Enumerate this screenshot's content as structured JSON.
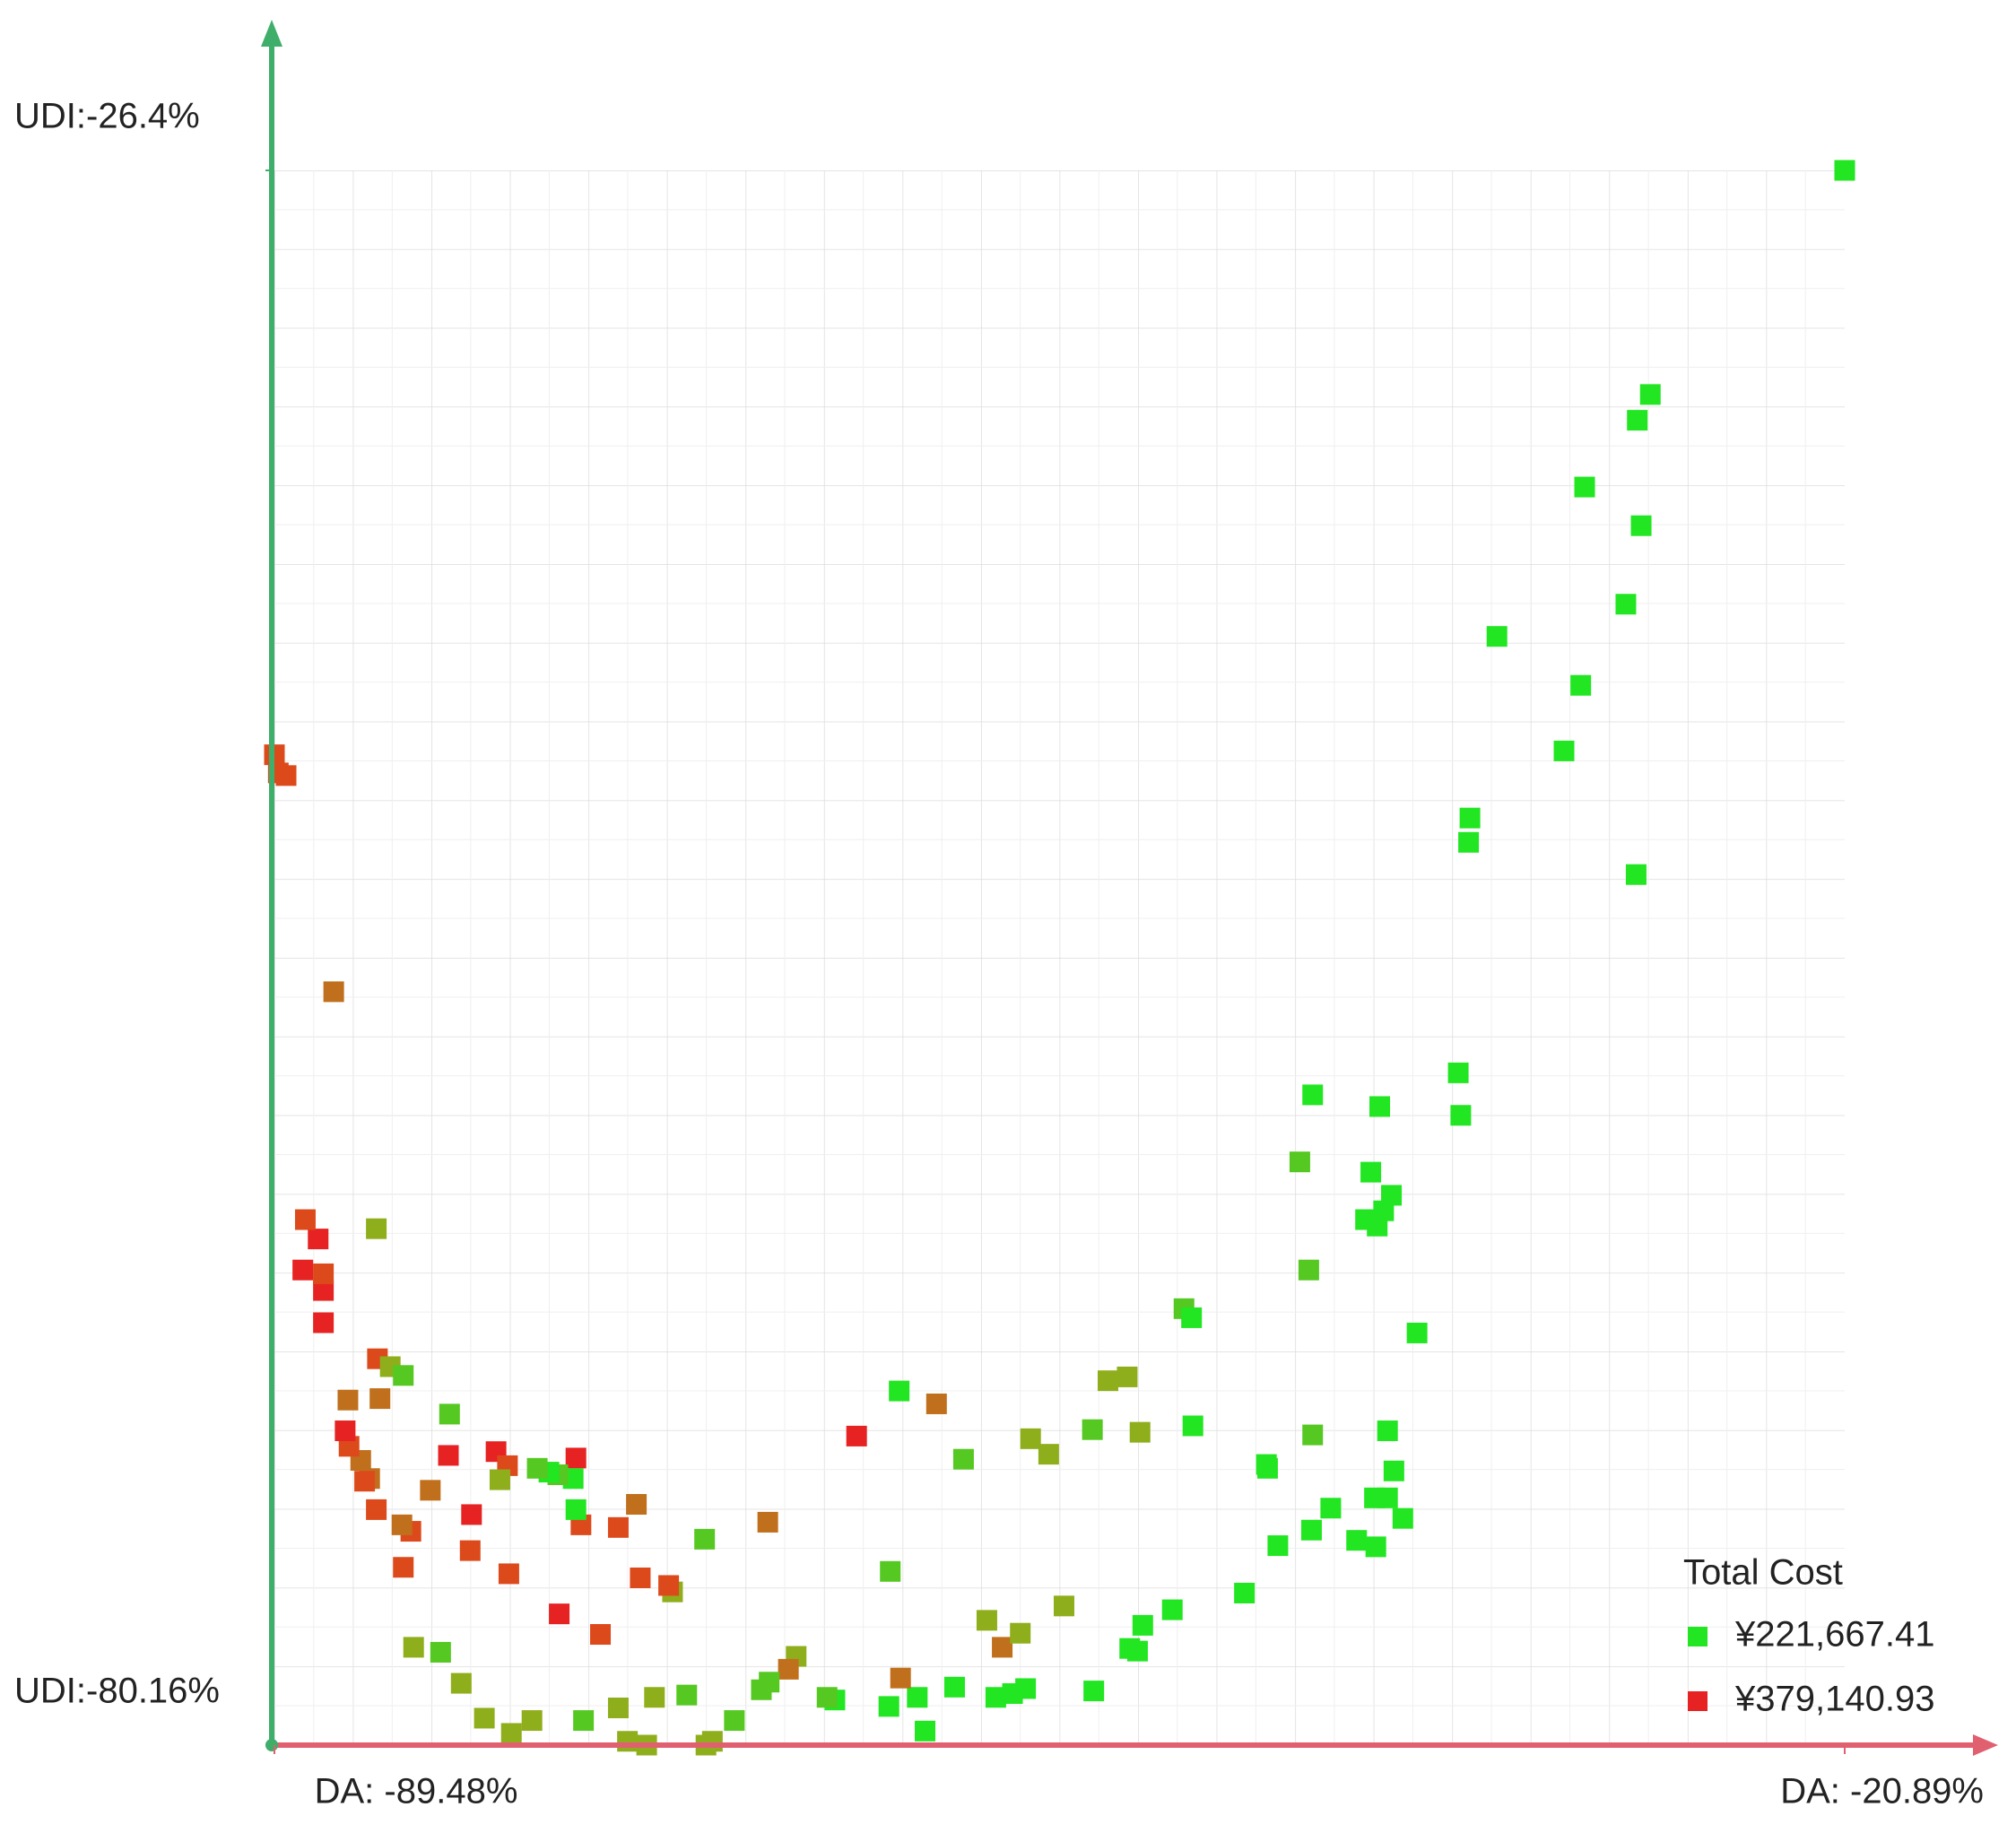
{
  "chart_data": {
    "type": "scatter",
    "xlim": [
      -89.48,
      -20.89
    ],
    "ylim": [
      -80.16,
      -26.4
    ],
    "xticks": [
      {
        "value": -89.48,
        "label": "DA: -89.48%"
      },
      {
        "value": -20.89,
        "label": "DA: -20.89%"
      }
    ],
    "yticks": [
      {
        "value": -80.16,
        "label": "UDI:-80.16%"
      },
      {
        "value": -26.4,
        "label": "UDI:-26.4%"
      }
    ],
    "grid": true,
    "legend": {
      "title": "Total Cost",
      "position": "lower-right",
      "items": [
        {
          "label": "¥221,667.41",
          "color": "#22e622"
        },
        {
          "label": "¥379,140.93",
          "color": "#e62222"
        }
      ]
    },
    "x": [
      -20.89,
      -29.38,
      -29.95,
      -32.25,
      -29.78,
      -30.45,
      -36.08,
      -32.42,
      -33.15,
      -37.26,
      -37.32,
      -30.0,
      -37.77,
      -37.66,
      -44.13,
      -41.2,
      -44.69,
      -41.59,
      -40.69,
      -41.03,
      -41.82,
      -41.31,
      -44.3,
      -39.57,
      -49.75,
      -49.42,
      -49.36,
      -40.86,
      -44.13,
      -46.15,
      -46.1,
      -40.58,
      -41.43,
      -40.86,
      -43.34,
      -40.19,
      -44.18,
      -42.21,
      -41.37,
      -45.65,
      -47.11,
      -50.26,
      -51.55,
      -52.12,
      -51.78,
      -53.07,
      -52.23,
      -53.75,
      -51.67,
      -56.45,
      -55.66,
      -54.99,
      -58.36,
      -57.69,
      -56.9,
      -53.69,
      -56.67,
      -57.24,
      -57.97,
      -59.77,
      -61.4,
      -61.06,
      -62.64,
      -62.13,
      -62.19,
      -60.56,
      -59.38,
      -64.05,
      -62.58,
      -65.0,
      -65.34,
      -66.69,
      -67.03,
      -67.87,
      -68.21,
      -69.39,
      -67.93,
      -70.69,
      -70.35,
      -70.63,
      -71.47,
      -72.88,
      -73.22,
      -74.06,
      -74.46,
      -75.98,
      -78.23,
      -79.13,
      -80.31,
      -81.32,
      -82.22,
      -83.4,
      -72.09,
      -72.26,
      -73.5,
      -75.24,
      -77.04,
      -73.67,
      -74.46,
      -76.09,
      -76.31,
      -76.31,
      -76.43,
      -77.1,
      -77.49,
      -78.0,
      -79.24,
      -80.87,
      -80.93,
      -79.8,
      -79.3,
      -79.63,
      -81.88,
      -81.83,
      -82.67,
      -83.52,
      -83.91,
      -83.85,
      -85.03,
      -85.32,
      -85.54,
      -85.71,
      -86.22,
      -86.39,
      -86.27,
      -84.87,
      -84.98,
      -84.42,
      -83.85,
      -85.03,
      -87.34,
      -87.34,
      -87.34,
      -88.24,
      -87.57,
      -88.13,
      -86.89,
      -89.48,
      -88.97,
      -89.31
    ],
    "y": [
      -26.4,
      -34.05,
      -34.93,
      -37.21,
      -38.53,
      -41.21,
      -42.31,
      -43.98,
      -46.22,
      -48.51,
      -49.34,
      -50.44,
      -57.21,
      -58.66,
      -57.96,
      -58.36,
      -60.25,
      -60.6,
      -61.39,
      -61.92,
      -62.22,
      -62.44,
      -63.94,
      -66.09,
      -65.26,
      -65.57,
      -69.26,
      -69.43,
      -69.57,
      -70.58,
      -70.71,
      -70.8,
      -71.72,
      -71.72,
      -72.07,
      -72.42,
      -72.82,
      -73.17,
      -73.39,
      -73.35,
      -74.97,
      -75.54,
      -76.07,
      -76.86,
      -76.95,
      -67.72,
      -67.59,
      -69.39,
      -69.48,
      -69.7,
      -70.23,
      -75.41,
      -75.9,
      -76.82,
      -76.34,
      -78.31,
      -78.23,
      -78.4,
      -78.53,
      -78.18,
      -78.53,
      -79.68,
      -78.84,
      -77.87,
      -68.07,
      -68.51,
      -70.4,
      -69.61,
      -74.23,
      -78.62,
      -78.53,
      -77.13,
      -77.57,
      -78.01,
      -78.27,
      -79.32,
      -72.55,
      -73.13,
      -80.03,
      -80.16,
      -78.45,
      -78.53,
      -80.16,
      -80.03,
      -78.89,
      -79.32,
      -79.32,
      -79.76,
      -79.24,
      -78.05,
      -76.99,
      -76.82,
      -74.93,
      -74.71,
      -74.45,
      -76.38,
      -75.68,
      -71.94,
      -72.73,
      -72.64,
      -70.36,
      -72.12,
      -71.06,
      -70.93,
      -70.84,
      -70.71,
      -74.31,
      -72.29,
      -73.52,
      -70.14,
      -70.62,
      -71.1,
      -70.27,
      -68.86,
      -71.46,
      -72.86,
      -72.64,
      -74.09,
      -72.12,
      -71.06,
      -71.15,
      -70.44,
      -69.96,
      -69.43,
      -68.38,
      -68.33,
      -66.97,
      -67.24,
      -67.54,
      -62.53,
      -65.74,
      -64.64,
      -64.07,
      -63.94,
      -62.88,
      -62.22,
      -54.44,
      -46.35,
      -47.06,
      -46.97
    ],
    "colors": [
      "#22e622",
      "#22e622",
      "#22e622",
      "#22e622",
      "#22e622",
      "#22e622",
      "#22e622",
      "#22e622",
      "#22e622",
      "#22e622",
      "#22e622",
      "#22e622",
      "#22e622",
      "#22e622",
      "#22e622",
      "#22e622",
      "#55c822",
      "#22e622",
      "#22e622",
      "#22e622",
      "#22e622",
      "#22e622",
      "#55c822",
      "#22e622",
      "#55c822",
      "#22e622",
      "#22e622",
      "#22e622",
      "#55c822",
      "#22e622",
      "#22e622",
      "#22e622",
      "#22e622",
      "#22e622",
      "#22e622",
      "#22e622",
      "#22e622",
      "#22e622",
      "#22e622",
      "#22e622",
      "#22e622",
      "#22e622",
      "#22e622",
      "#22e622",
      "#22e622",
      "#8fae1c",
      "#8fae1c",
      "#55c822",
      "#8fae1c",
      "#8fae1c",
      "#8fae1c",
      "#8fae1c",
      "#8fae1c",
      "#c0701c",
      "#8fae1c",
      "#22e622",
      "#22e622",
      "#22e622",
      "#22e622",
      "#22e622",
      "#22e622",
      "#22e622",
      "#22e622",
      "#c0701c",
      "#22e622",
      "#c0701c",
      "#55c822",
      "#e62222",
      "#55c822",
      "#22e622",
      "#55c822",
      "#8fae1c",
      "#c0701c",
      "#55c822",
      "#55c822",
      "#55c822",
      "#c0701c",
      "#55c822",
      "#8fae1c",
      "#8fae1c",
      "#55c822",
      "#8fae1c",
      "#8fae1c",
      "#8fae1c",
      "#8fae1c",
      "#55c822",
      "#8fae1c",
      "#8fae1c",
      "#8fae1c",
      "#8fae1c",
      "#55c822",
      "#8fae1c",
      "#8fae1c",
      "#dc4a1c",
      "#dc4a1c",
      "#dc4a1c",
      "#e62222",
      "#c0701c",
      "#dc4a1c",
      "#dc4a1c",
      "#e62222",
      "#22e622",
      "#22e622",
      "#55c822",
      "#22e622",
      "#55c822",
      "#dc4a1c",
      "#e62222",
      "#dc4a1c",
      "#e62222",
      "#dc4a1c",
      "#8fae1c",
      "#e62222",
      "#55c822",
      "#c0701c",
      "#dc4a1c",
      "#c0701c",
      "#dc4a1c",
      "#dc4a1c",
      "#c0701c",
      "#dc4a1c",
      "#c0701c",
      "#dc4a1c",
      "#e62222",
      "#c0701c",
      "#c0701c",
      "#dc4a1c",
      "#8fae1c",
      "#55c822",
      "#8fae1c",
      "#e62222",
      "#e62222",
      "#dc4a1c",
      "#e62222",
      "#e62222",
      "#dc4a1c",
      "#c0701c",
      "#dc4a1c",
      "#dc4a1c",
      "#dc4a1c"
    ]
  }
}
